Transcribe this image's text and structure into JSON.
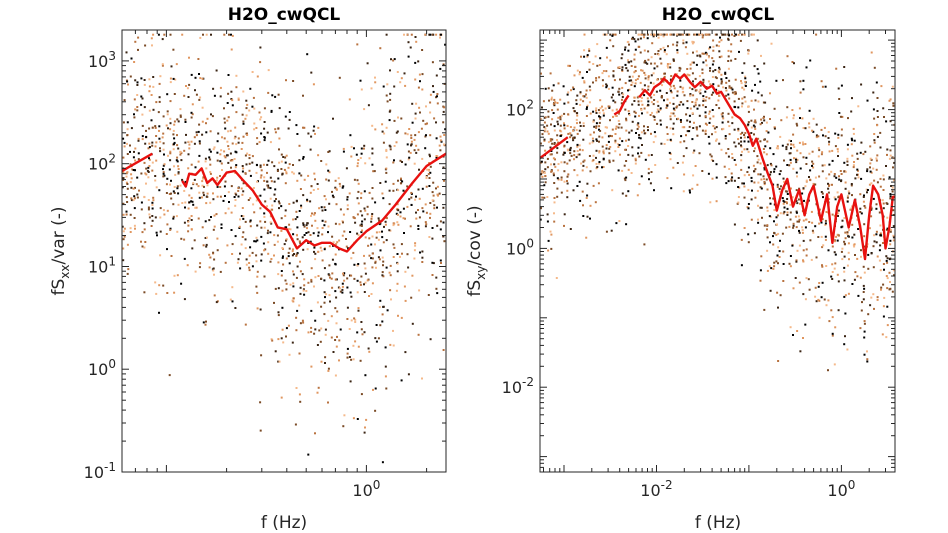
{
  "chart_data": [
    {
      "type": "scatter",
      "title": "H2O_cwQCL",
      "xlabel": "f (Hz)",
      "ylabel": "fSxx/var (-)",
      "ylabel_main": "fS",
      "ylabel_sub": "xx",
      "ylabel_tail": "/var (-)",
      "xscale": "log",
      "yscale": "log",
      "xlim": [
        0.06,
        2.5
      ],
      "ylim": [
        0.1,
        2000
      ],
      "x_ticks": [
        {
          "value": 1,
          "base": "10",
          "exp": "0"
        }
      ],
      "y_ticks": [
        {
          "value": 0.1,
          "base": "10",
          "exp": "-1"
        },
        {
          "value": 1,
          "base": "10",
          "exp": "0"
        },
        {
          "value": 10,
          "base": "10",
          "exp": "1"
        },
        {
          "value": 100,
          "base": "10",
          "exp": "2"
        },
        {
          "value": 1000,
          "base": "10",
          "exp": "3"
        }
      ],
      "scatter_colors": [
        "#000000",
        "#3a2413",
        "#7a4a25",
        "#b8723f",
        "#e0965f",
        "#f5b98a"
      ],
      "scatter_y_range": {
        "low": 0.12,
        "high": 1800
      },
      "mean_line": {
        "color": "#e8110f",
        "segments": [
          [
            [
              0.06,
              85
            ],
            [
              0.085,
              125
            ]
          ],
          [
            [
              0.12,
              68
            ],
            [
              0.125,
              60
            ],
            [
              0.13,
              80
            ],
            [
              0.14,
              78
            ],
            [
              0.15,
              90
            ],
            [
              0.16,
              65
            ],
            [
              0.17,
              72
            ],
            [
              0.18,
              62
            ],
            [
              0.2,
              82
            ],
            [
              0.22,
              85
            ],
            [
              0.24,
              70
            ],
            [
              0.27,
              55
            ],
            [
              0.3,
              40
            ],
            [
              0.33,
              34
            ],
            [
              0.36,
              24
            ],
            [
              0.4,
              23
            ],
            [
              0.45,
              15
            ],
            [
              0.5,
              18
            ],
            [
              0.55,
              16
            ],
            [
              0.6,
              17
            ],
            [
              0.66,
              17
            ],
            [
              0.73,
              15
            ],
            [
              0.8,
              14
            ],
            [
              0.9,
              18
            ],
            [
              1.0,
              22
            ],
            [
              1.2,
              28
            ],
            [
              1.4,
              40
            ],
            [
              1.7,
              65
            ],
            [
              2.0,
              95
            ],
            [
              2.5,
              125
            ]
          ]
        ]
      }
    },
    {
      "type": "scatter",
      "title": "H2O_cwQCL",
      "xlabel": "f (Hz)",
      "ylabel": "fSxy/cov (-)",
      "ylabel_main": "fS",
      "ylabel_sub": "xy",
      "ylabel_tail": "/cov (-)",
      "xscale": "log",
      "yscale": "log",
      "xlim": [
        0.00055,
        3.8
      ],
      "ylim": [
        0.0006,
        1400
      ],
      "x_ticks": [
        {
          "value": 0.01,
          "base": "10",
          "exp": "-2"
        },
        {
          "value": 1,
          "base": "10",
          "exp": "0"
        }
      ],
      "y_ticks": [
        {
          "value": 0.01,
          "base": "10",
          "exp": "-2"
        },
        {
          "value": 1,
          "base": "10",
          "exp": "0"
        },
        {
          "value": 100,
          "base": "10",
          "exp": "2"
        }
      ],
      "scatter_colors": [
        "#000000",
        "#3a2413",
        "#7a4a25",
        "#b8723f",
        "#e0965f",
        "#f5b98a"
      ],
      "scatter_y_range": {
        "low": 0.005,
        "high": 1200
      },
      "mean_line": {
        "color": "#e8110f",
        "segments": [
          [
            [
              0.00055,
              20
            ],
            [
              0.0011,
              40
            ]
          ],
          [
            [
              0.0035,
              85
            ],
            [
              0.004,
              95
            ],
            [
              0.0045,
              130
            ],
            [
              0.005,
              160
            ]
          ],
          [
            [
              0.0065,
              150
            ],
            [
              0.0075,
              190
            ],
            [
              0.0085,
              160
            ],
            [
              0.0095,
              210
            ],
            [
              0.011,
              240
            ],
            [
              0.012,
              280
            ],
            [
              0.014,
              230
            ],
            [
              0.016,
              320
            ],
            [
              0.018,
              280
            ],
            [
              0.02,
              320
            ],
            [
              0.023,
              250
            ],
            [
              0.026,
              210
            ],
            [
              0.03,
              250
            ],
            [
              0.035,
              200
            ],
            [
              0.04,
              220
            ],
            [
              0.045,
              170
            ],
            [
              0.05,
              180
            ],
            [
              0.06,
              120
            ],
            [
              0.07,
              85
            ],
            [
              0.08,
              75
            ],
            [
              0.09,
              60
            ],
            [
              0.1,
              45
            ],
            [
              0.11,
              30
            ],
            [
              0.12,
              38
            ],
            [
              0.14,
              20
            ],
            [
              0.16,
              12
            ],
            [
              0.18,
              8
            ],
            [
              0.2,
              3.5
            ],
            [
              0.23,
              7
            ],
            [
              0.26,
              10
            ],
            [
              0.3,
              4
            ],
            [
              0.35,
              7
            ],
            [
              0.4,
              3
            ],
            [
              0.45,
              6
            ],
            [
              0.5,
              8
            ],
            [
              0.6,
              2.5
            ],
            [
              0.7,
              6
            ],
            [
              0.8,
              1.2
            ],
            [
              0.9,
              4
            ],
            [
              1.0,
              6
            ],
            [
              1.2,
              2
            ],
            [
              1.4,
              5
            ],
            [
              1.6,
              2
            ],
            [
              1.8,
              0.7
            ],
            [
              2.0,
              3
            ],
            [
              2.2,
              8
            ],
            [
              2.5,
              6
            ],
            [
              2.8,
              3
            ],
            [
              3.0,
              1
            ],
            [
              3.3,
              2
            ],
            [
              3.6,
              5.5
            ],
            [
              3.8,
              5.5
            ]
          ]
        ]
      }
    }
  ]
}
